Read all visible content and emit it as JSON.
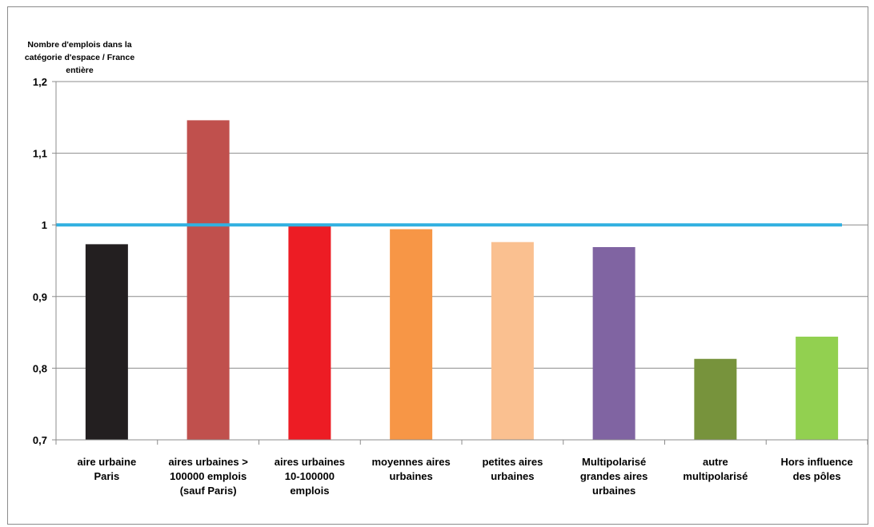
{
  "chart_data": {
    "type": "bar",
    "title": "",
    "ylabel": "Nombre d'emplois dans la catégorie d'espace / France entière",
    "xlabel": "",
    "categories": [
      "aire urbaine Paris",
      "aires urbaines > 100000 emplois (sauf Paris)",
      "aires urbaines 10-100000 emplois",
      "moyennes aires urbaines",
      "petites aires urbaines",
      "Multipolarisé grandes aires urbaines",
      "autre multipolarisé",
      "Hors influence des pôles"
    ],
    "category_lines": [
      [
        "aire urbaine",
        "Paris"
      ],
      [
        "aires urbaines >",
        "100000 emplois",
        "(sauf Paris)"
      ],
      [
        "aires urbaines",
        "10-100000",
        "emplois"
      ],
      [
        "moyennes aires",
        "urbaines"
      ],
      [
        "petites aires",
        "urbaines"
      ],
      [
        "Multipolarisé",
        "grandes aires",
        "urbaines"
      ],
      [
        "autre",
        "multipolarisé"
      ],
      [
        "Hors influence",
        "des pôles"
      ]
    ],
    "values": [
      0.973,
      1.146,
      0.998,
      0.994,
      0.976,
      0.969,
      0.813,
      0.844
    ],
    "colors": [
      "#231f20",
      "#c0504d",
      "#ed1c24",
      "#f79646",
      "#fac090",
      "#8064a2",
      "#77933c",
      "#92d050"
    ],
    "reference_line": {
      "value": 1.0,
      "color": "#31b0e0"
    },
    "ylim": [
      0.7,
      1.2
    ],
    "yticks": [
      0.7,
      0.8,
      0.9,
      1.0,
      1.1,
      1.2
    ],
    "ytick_labels": [
      "0,7",
      "0,8",
      "0,9",
      "1",
      "1,1",
      "1,2"
    ],
    "grid": true,
    "legend": "none"
  },
  "ylabel_lines": [
    "Nombre d'emplois dans  la",
    "catégorie d'espace / France",
    "entière"
  ]
}
